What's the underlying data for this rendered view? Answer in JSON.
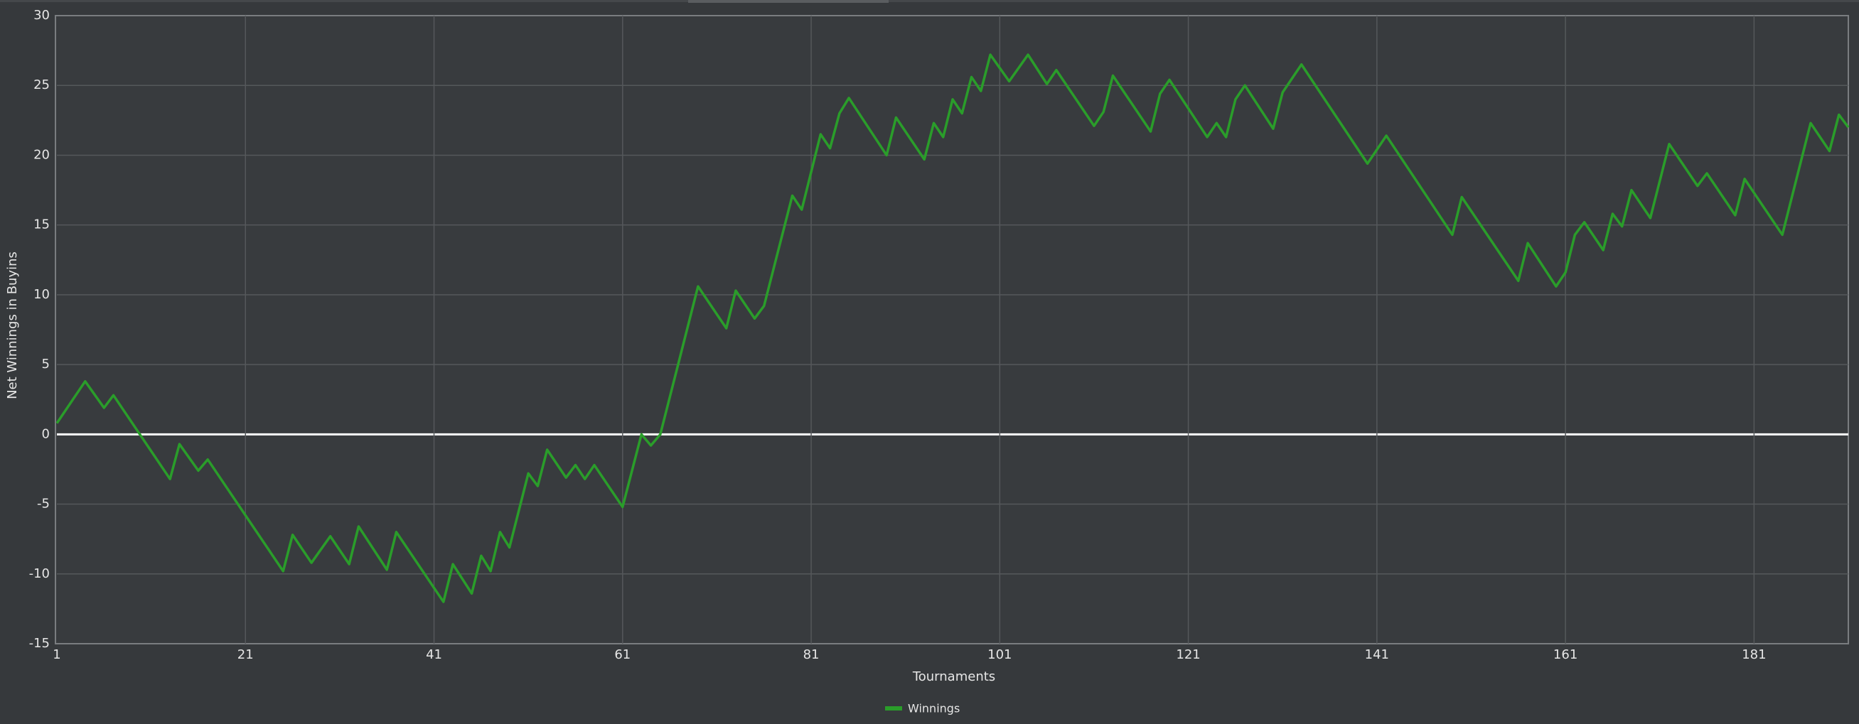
{
  "chart_data": {
    "type": "line",
    "x_label": "Tournaments",
    "y_label": "Net Winnings in Buyins",
    "x": [
      1,
      4,
      6,
      7,
      13,
      14,
      16,
      17,
      25,
      26,
      28,
      30,
      32,
      33,
      36,
      37,
      42,
      43,
      45,
      46,
      47,
      48,
      49,
      51,
      52,
      53,
      55,
      56,
      57,
      58,
      61,
      63,
      64,
      65,
      69,
      72,
      73,
      75,
      76,
      79,
      80,
      82,
      83,
      84,
      85,
      89,
      90,
      93,
      94,
      95,
      96,
      97,
      98,
      99,
      100,
      102,
      104,
      106,
      107,
      111,
      112,
      113,
      117,
      118,
      119,
      123,
      124,
      125,
      126,
      127,
      130,
      131,
      133,
      140,
      142,
      149,
      150,
      156,
      157,
      160,
      161,
      162,
      163,
      165,
      166,
      167,
      168,
      170,
      172,
      175,
      176,
      179,
      180,
      184,
      187,
      189,
      190,
      191
    ],
    "series": [
      {
        "name": "Winnings",
        "color": "#2a9d2a",
        "values": [
          0.8,
          3.8,
          1.9,
          2.8,
          -3.2,
          -0.7,
          -2.6,
          -1.8,
          -9.8,
          -7.2,
          -9.2,
          -7.3,
          -9.3,
          -6.6,
          -9.7,
          -7.0,
          -12.0,
          -9.3,
          -11.4,
          -8.7,
          -9.8,
          -7.0,
          -8.1,
          -2.8,
          -3.7,
          -1.1,
          -3.1,
          -2.2,
          -3.2,
          -2.2,
          -5.2,
          0.0,
          -0.8,
          0.0,
          10.6,
          7.6,
          10.3,
          8.3,
          9.2,
          17.1,
          16.1,
          21.5,
          20.5,
          23.0,
          24.1,
          20.0,
          22.7,
          19.7,
          22.3,
          21.3,
          24.0,
          23.0,
          25.6,
          24.6,
          27.2,
          25.3,
          27.2,
          25.1,
          26.1,
          22.1,
          23.1,
          25.7,
          21.7,
          24.4,
          25.4,
          21.3,
          22.3,
          21.3,
          24.0,
          25.0,
          21.9,
          24.5,
          26.5,
          19.4,
          21.4,
          14.3,
          17.0,
          11.0,
          13.7,
          10.6,
          11.6,
          14.3,
          15.2,
          13.2,
          15.8,
          14.9,
          17.5,
          15.5,
          20.8,
          17.8,
          18.7,
          15.7,
          18.3,
          14.3,
          22.3,
          20.3,
          22.9,
          22.0
        ]
      }
    ],
    "xlim": [
      1,
      191
    ],
    "xticks": [
      1,
      21,
      41,
      61,
      81,
      101,
      121,
      141,
      161,
      181
    ],
    "ylim": [
      -15,
      30
    ],
    "yticks": [
      -15,
      -10,
      -5,
      0,
      5,
      10,
      15,
      20,
      25,
      30
    ],
    "grid": true,
    "legend": "bottom"
  }
}
